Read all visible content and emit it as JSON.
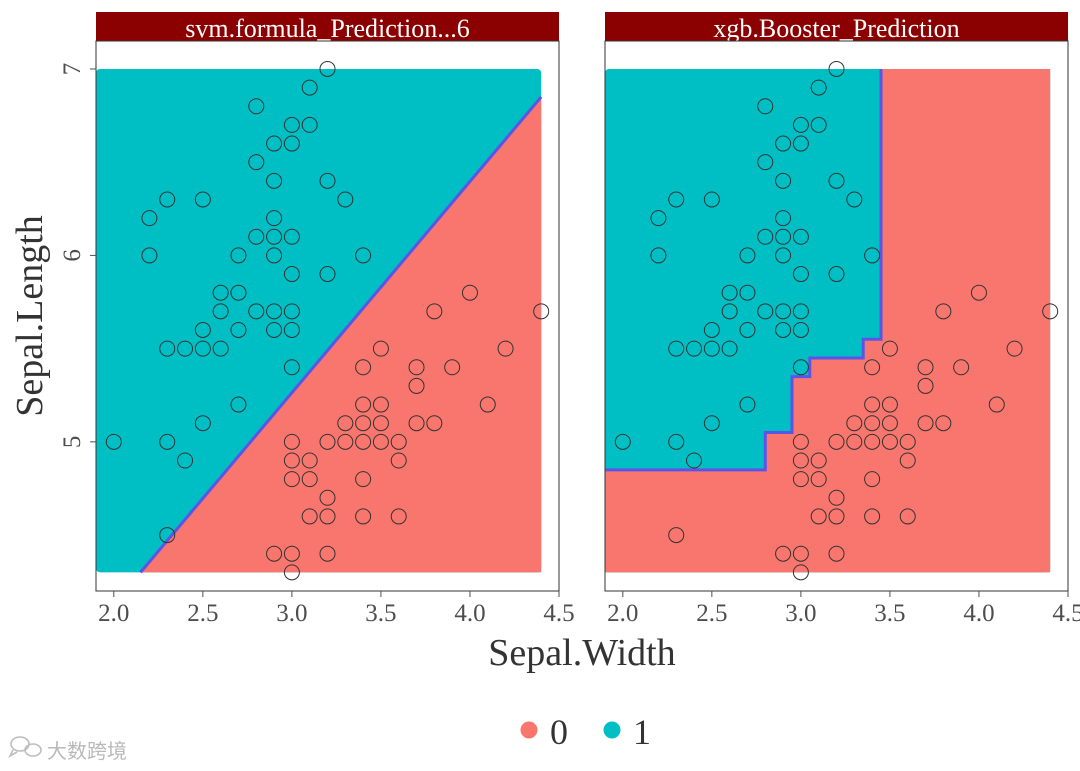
{
  "colors": {
    "class_0": "#F8766D",
    "class_1": "#00BFC4",
    "boundary": "#5B54E8",
    "strip_bg": "#8B0000",
    "strip_text": "#FFFFFF",
    "panel_border": "#333333",
    "point_stroke": "#333333",
    "tick": "#4D4D4D"
  },
  "watermark": {
    "text": "大数跨境",
    "icon": "wechat-bubbles-icon"
  },
  "chart_data": {
    "type": "scatter",
    "xlabel": "Sepal.Width",
    "ylabel": "Sepal.Length",
    "xlim": [
      1.9,
      4.5
    ],
    "ylim": [
      4.2,
      7.15
    ],
    "x_ticks": [
      2.0,
      2.5,
      3.0,
      3.5,
      4.0,
      4.5
    ],
    "x_tick_labels": [
      "2.0",
      "2.5",
      "3.0",
      "3.5",
      "4.0",
      "4.5"
    ],
    "y_ticks": [
      5,
      6,
      7
    ],
    "y_tick_labels": [
      "5",
      "6",
      "7"
    ],
    "grid": false,
    "legend": {
      "position": "bottom",
      "entries": [
        {
          "label": "0",
          "class": 0
        },
        {
          "label": "1",
          "class": 1
        }
      ]
    },
    "region_extent": {
      "x": [
        1.9,
        4.4
      ],
      "y": [
        4.3,
        7.0
      ]
    },
    "panels": [
      {
        "strip": "svm.formula_Prediction...6",
        "boundary_type": "linear",
        "boundary_line": [
          [
            2.15,
            4.3
          ],
          [
            4.4,
            6.85
          ]
        ]
      },
      {
        "strip": "xgb.Booster_Prediction",
        "boundary_type": "step",
        "boundary_path": [
          [
            1.9,
            4.85
          ],
          [
            2.8,
            4.85
          ],
          [
            2.8,
            5.05
          ],
          [
            2.95,
            5.05
          ],
          [
            2.95,
            5.35
          ],
          [
            3.05,
            5.35
          ],
          [
            3.05,
            5.45
          ],
          [
            3.35,
            5.45
          ],
          [
            3.35,
            5.55
          ],
          [
            3.45,
            5.55
          ],
          [
            3.45,
            7.0
          ]
        ]
      }
    ],
    "points": [
      [
        4.4,
        5.7
      ],
      [
        4.2,
        5.5
      ],
      [
        4.1,
        5.2
      ],
      [
        4.0,
        5.8
      ],
      [
        3.9,
        5.4
      ],
      [
        3.8,
        5.7
      ],
      [
        3.8,
        5.1
      ],
      [
        3.7,
        5.4
      ],
      [
        3.7,
        5.3
      ],
      [
        3.7,
        5.1
      ],
      [
        3.6,
        5.0
      ],
      [
        3.6,
        4.9
      ],
      [
        3.6,
        4.6
      ],
      [
        3.5,
        5.5
      ],
      [
        3.5,
        5.2
      ],
      [
        3.5,
        5.1
      ],
      [
        3.5,
        5.0
      ],
      [
        3.4,
        5.4
      ],
      [
        3.4,
        5.2
      ],
      [
        3.4,
        5.1
      ],
      [
        3.4,
        5.0
      ],
      [
        3.4,
        4.8
      ],
      [
        3.4,
        4.6
      ],
      [
        3.4,
        6.0
      ],
      [
        3.3,
        5.0
      ],
      [
        3.3,
        6.3
      ],
      [
        3.3,
        5.1
      ],
      [
        3.2,
        7.0
      ],
      [
        3.2,
        6.4
      ],
      [
        3.2,
        5.9
      ],
      [
        3.2,
        5.0
      ],
      [
        3.2,
        4.7
      ],
      [
        3.2,
        4.4
      ],
      [
        3.2,
        4.6
      ],
      [
        3.1,
        6.9
      ],
      [
        3.1,
        6.7
      ],
      [
        3.1,
        4.9
      ],
      [
        3.1,
        4.8
      ],
      [
        3.1,
        4.6
      ],
      [
        3.0,
        6.7
      ],
      [
        3.0,
        6.6
      ],
      [
        3.0,
        6.1
      ],
      [
        3.0,
        5.9
      ],
      [
        3.0,
        5.7
      ],
      [
        3.0,
        5.6
      ],
      [
        3.0,
        5.4
      ],
      [
        3.0,
        5.0
      ],
      [
        3.0,
        4.9
      ],
      [
        3.0,
        4.8
      ],
      [
        3.0,
        4.4
      ],
      [
        3.0,
        4.3
      ],
      [
        2.9,
        6.6
      ],
      [
        2.9,
        6.4
      ],
      [
        2.9,
        6.2
      ],
      [
        2.9,
        6.1
      ],
      [
        2.9,
        6.0
      ],
      [
        2.9,
        5.7
      ],
      [
        2.9,
        5.6
      ],
      [
        2.9,
        4.4
      ],
      [
        2.8,
        6.8
      ],
      [
        2.8,
        6.5
      ],
      [
        2.8,
        6.1
      ],
      [
        2.8,
        5.7
      ],
      [
        2.7,
        6.0
      ],
      [
        2.7,
        5.8
      ],
      [
        2.7,
        5.6
      ],
      [
        2.7,
        5.2
      ],
      [
        2.6,
        5.8
      ],
      [
        2.6,
        5.7
      ],
      [
        2.6,
        5.5
      ],
      [
        2.5,
        6.3
      ],
      [
        2.5,
        5.6
      ],
      [
        2.5,
        5.5
      ],
      [
        2.5,
        5.1
      ],
      [
        2.4,
        5.5
      ],
      [
        2.4,
        4.9
      ],
      [
        2.3,
        6.3
      ],
      [
        2.3,
        5.5
      ],
      [
        2.3,
        5.0
      ],
      [
        2.3,
        4.5
      ],
      [
        2.2,
        6.2
      ],
      [
        2.2,
        6.0
      ],
      [
        2.0,
        5.0
      ]
    ]
  }
}
